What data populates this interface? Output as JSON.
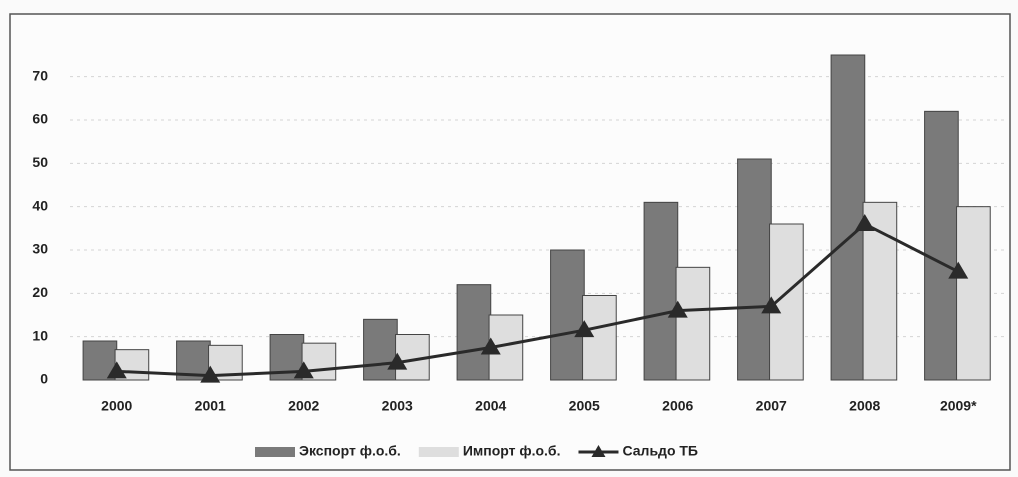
{
  "chart_data": {
    "type": "bar",
    "categories": [
      "2000",
      "2001",
      "2002",
      "2003",
      "2004",
      "2005",
      "2006",
      "2007",
      "2008",
      "2009*"
    ],
    "series": [
      {
        "name": "Экспорт ф.о.б.",
        "color": "#7a7a7a",
        "type": "bar",
        "values": [
          9,
          9,
          10.5,
          14,
          22,
          30,
          41,
          51,
          75,
          62
        ]
      },
      {
        "name": "Импорт ф.о.б.",
        "color": "#dedede",
        "type": "bar",
        "values": [
          7,
          8,
          8.5,
          10.5,
          15,
          19.5,
          26,
          36,
          41,
          40
        ]
      },
      {
        "name": "Сальдо ТБ",
        "color": "#2a2a2a",
        "type": "line",
        "values": [
          2,
          1,
          2,
          4,
          7.5,
          11.5,
          16,
          17,
          36,
          25
        ]
      }
    ],
    "ylim": [
      0,
      78
    ],
    "yticks": [
      0,
      10,
      20,
      30,
      40,
      50,
      60,
      70
    ],
    "grid": true,
    "legend": "bottom"
  }
}
